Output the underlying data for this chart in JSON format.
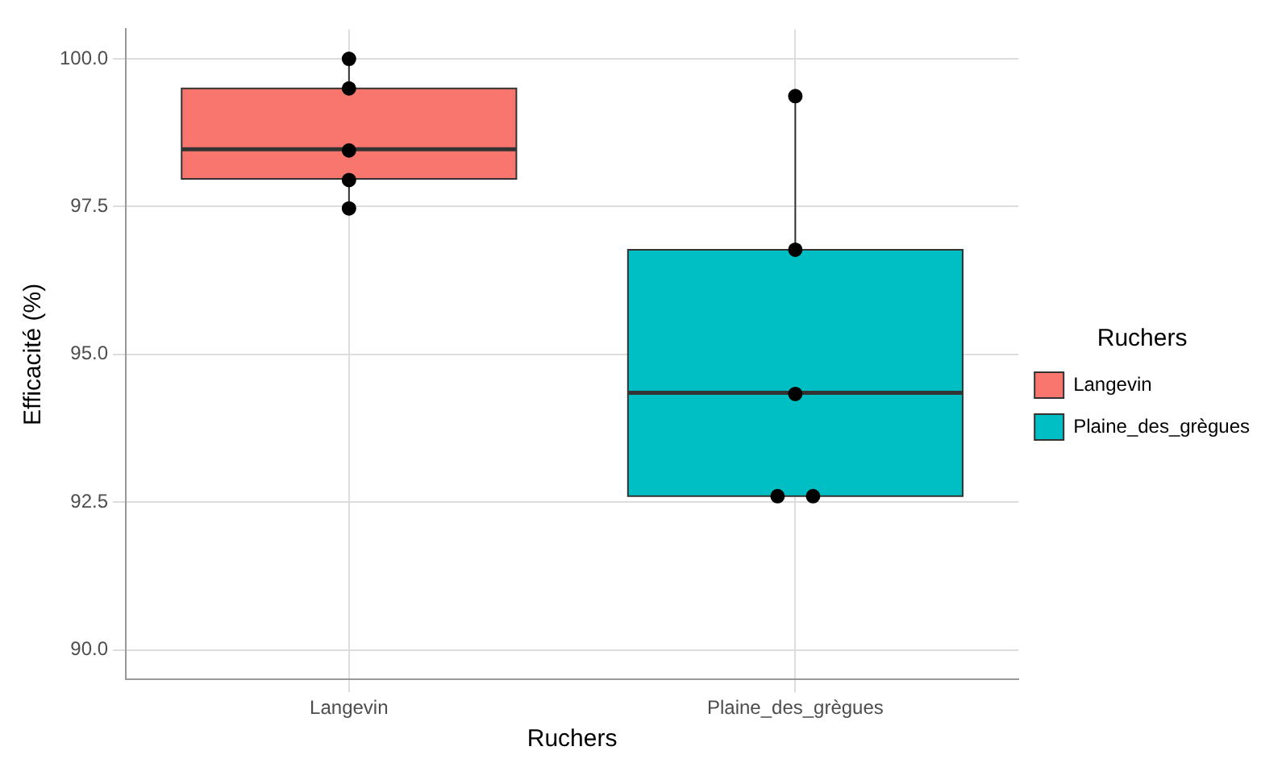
{
  "chart_data": {
    "type": "box",
    "xlabel": "Ruchers",
    "ylabel": "Efficacité (%)",
    "legend_title": "Ruchers",
    "legend": "right",
    "grid": true,
    "categories": [
      "Langevin",
      "Plaine_des_grègues"
    ],
    "ylim": [
      89.5,
      100.5
    ],
    "yticks": [
      {
        "value": 90,
        "label": "90.0"
      },
      {
        "value": 92.5,
        "label": "92.5"
      },
      {
        "value": 95,
        "label": "95.0"
      },
      {
        "value": 97.5,
        "label": "97.5"
      },
      {
        "value": 100,
        "label": "100.0"
      }
    ],
    "series": [
      {
        "name": "Langevin",
        "color": "#f8766d",
        "boxes": [
          {
            "low": 97.47,
            "q1": 97.97,
            "median": 98.47,
            "q3": 99.5,
            "high": 100.0
          },
          null
        ]
      },
      {
        "name": "Plaine_des_grègues",
        "color": "#00bfc4",
        "boxes": [
          null,
          {
            "low": 92.6,
            "q1": 92.6,
            "median": 94.35,
            "q3": 96.77,
            "high": 99.37
          }
        ]
      },
      {
        "type": "scatter",
        "color": "#000000",
        "marker": "circle",
        "x": [
          "Langevin",
          "Langevin",
          "Langevin",
          "Langevin",
          "Langevin",
          "Plaine_des_grègues",
          "Plaine_des_grègues",
          "Plaine_des_grègues",
          "Plaine_des_grègues",
          "Plaine_des_grègues"
        ],
        "values": [
          100.0,
          99.5,
          98.45,
          97.95,
          97.47,
          99.37,
          96.77,
          94.33,
          92.6,
          92.6
        ]
      }
    ]
  }
}
